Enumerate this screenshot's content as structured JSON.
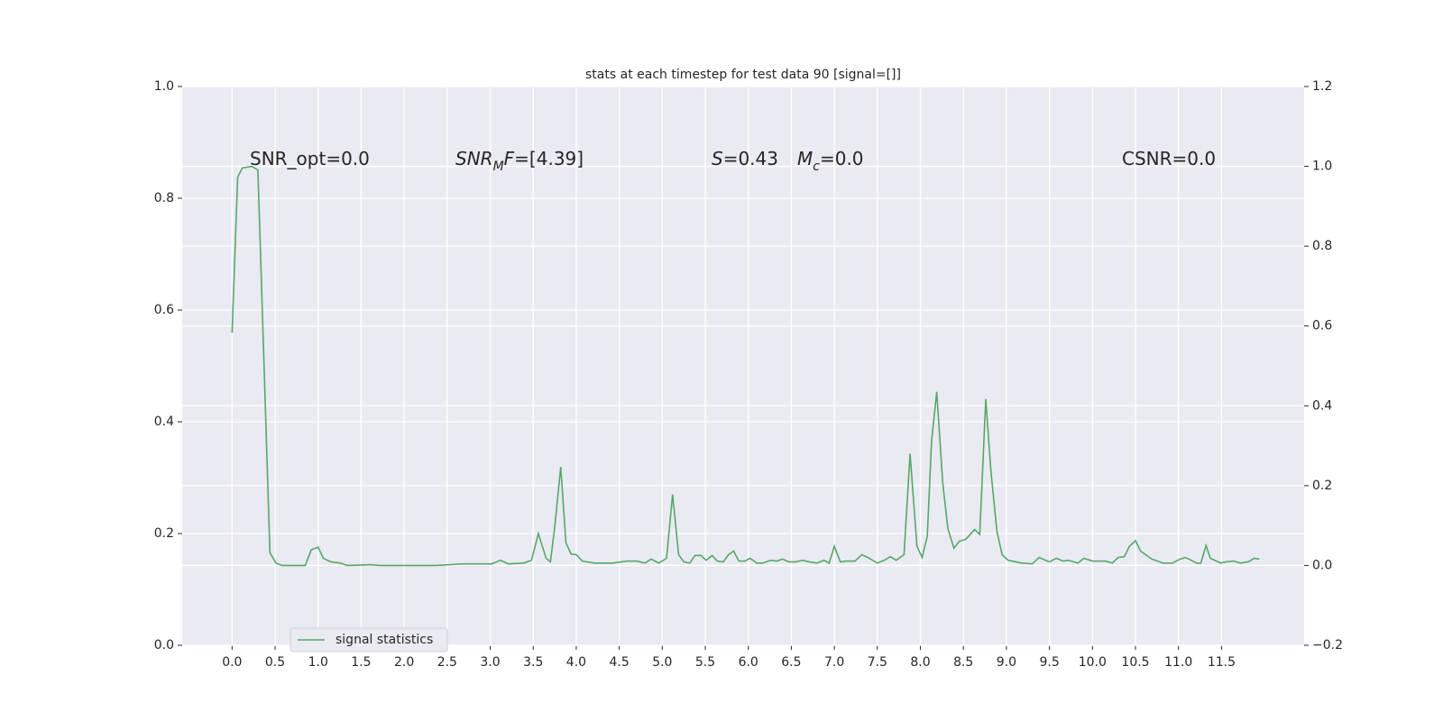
{
  "chart_data": {
    "type": "line",
    "title": "stats at each timestep for test data 90 [signal=[]]",
    "annotations": [
      {
        "parts": [
          {
            "text": "SNR_opt=0.0"
          }
        ]
      },
      {
        "parts": [
          {
            "text": "SNR",
            "italic": true
          },
          {
            "text": "M",
            "italic": true,
            "sub": true
          },
          {
            "text": "F",
            "italic": true
          },
          {
            "text": "=[4.39]"
          }
        ]
      },
      {
        "parts": [
          {
            "text": "S",
            "italic": true
          },
          {
            "text": "=0.43"
          }
        ]
      },
      {
        "parts": [
          {
            "text": "M",
            "italic": true
          },
          {
            "text": "c",
            "italic": true,
            "sub": true
          },
          {
            "text": "=0.0"
          }
        ]
      },
      {
        "parts": [
          {
            "text": "CSNR=0.0"
          }
        ]
      }
    ],
    "x": [
      0,
      0.065,
      0.12,
      0.23,
      0.3,
      0.44,
      0.51,
      0.58,
      0.85,
      0.92,
      1.0,
      1.06,
      1.15,
      1.26,
      1.34,
      1.61,
      1.72,
      2.37,
      2.69,
      3.02,
      3.12,
      3.21,
      3.39,
      3.48,
      3.56,
      3.65,
      3.7,
      3.75,
      3.82,
      3.88,
      3.94,
      4.0,
      4.07,
      4.21,
      4.42,
      4.59,
      4.7,
      4.8,
      4.87,
      4.96,
      5.05,
      5.12,
      5.19,
      5.25,
      5.32,
      5.38,
      5.45,
      5.51,
      5.58,
      5.64,
      5.71,
      5.77,
      5.83,
      5.89,
      5.96,
      6.02,
      6.1,
      6.17,
      6.26,
      6.33,
      6.4,
      6.47,
      6.55,
      6.63,
      6.71,
      6.8,
      6.88,
      6.94,
      7.0,
      7.07,
      7.14,
      7.24,
      7.32,
      7.39,
      7.5,
      7.58,
      7.65,
      7.72,
      7.81,
      7.88,
      7.96,
      8.02,
      8.08,
      8.13,
      8.19,
      8.26,
      8.32,
      8.39,
      8.45,
      8.53,
      8.63,
      8.69,
      8.76,
      8.82,
      8.89,
      8.95,
      9.02,
      9.18,
      9.3,
      9.38,
      9.5,
      9.58,
      9.66,
      9.72,
      9.83,
      9.9,
      10.0,
      10.15,
      10.23,
      10.3,
      10.37,
      10.43,
      10.5,
      10.56,
      10.69,
      10.82,
      10.93,
      11.02,
      11.08,
      11.15,
      11.21,
      11.26,
      11.32,
      11.37,
      11.49,
      11.55,
      11.64,
      11.72,
      11.81,
      11.88,
      11.94
    ],
    "series": [
      {
        "name": "signal statistics",
        "color": "#55a868",
        "axis": "y2",
        "values": [
          0.583,
          0.973,
          0.996,
          1.0,
          0.991,
          0.032,
          0.006,
          0.0,
          0.0,
          0.039,
          0.046,
          0.018,
          0.009,
          0.006,
          0.0,
          0.002,
          0.0,
          0.0,
          0.004,
          0.004,
          0.013,
          0.004,
          0.006,
          0.013,
          0.08,
          0.018,
          0.009,
          0.096,
          0.247,
          0.057,
          0.029,
          0.027,
          0.011,
          0.006,
          0.006,
          0.011,
          0.011,
          0.006,
          0.016,
          0.006,
          0.018,
          0.178,
          0.027,
          0.009,
          0.006,
          0.025,
          0.025,
          0.013,
          0.025,
          0.011,
          0.009,
          0.027,
          0.036,
          0.011,
          0.011,
          0.018,
          0.006,
          0.006,
          0.013,
          0.011,
          0.016,
          0.009,
          0.009,
          0.013,
          0.009,
          0.006,
          0.013,
          0.006,
          0.048,
          0.009,
          0.011,
          0.011,
          0.027,
          0.02,
          0.006,
          0.013,
          0.022,
          0.013,
          0.027,
          0.28,
          0.048,
          0.02,
          0.073,
          0.312,
          0.435,
          0.206,
          0.092,
          0.043,
          0.06,
          0.066,
          0.09,
          0.078,
          0.417,
          0.236,
          0.085,
          0.027,
          0.013,
          0.006,
          0.004,
          0.02,
          0.009,
          0.018,
          0.011,
          0.013,
          0.006,
          0.018,
          0.011,
          0.011,
          0.006,
          0.02,
          0.022,
          0.048,
          0.062,
          0.036,
          0.016,
          0.006,
          0.006,
          0.016,
          0.02,
          0.013,
          0.006,
          0.006,
          0.05,
          0.018,
          0.006,
          0.009,
          0.011,
          0.006,
          0.009,
          0.018,
          0.016
        ]
      }
    ],
    "xlim": [
      -0.58,
      12.46
    ],
    "xticks": [
      {
        "value": 0,
        "label": "0.0"
      },
      0.5,
      {
        "value": 1,
        "label": "1.0"
      },
      1.5,
      {
        "value": 2,
        "label": "2.0"
      },
      2.5,
      {
        "value": 3,
        "label": "3.0"
      },
      3.5,
      {
        "value": 4,
        "label": "4.0"
      },
      4.5,
      {
        "value": 5,
        "label": "5.0"
      },
      5.5,
      {
        "value": 6,
        "label": "6.0"
      },
      6.5,
      {
        "value": 7,
        "label": "7.0"
      },
      7.5,
      {
        "value": 8,
        "label": "8.0"
      },
      8.5,
      {
        "value": 9,
        "label": "9.0"
      },
      9.5,
      {
        "value": 10,
        "label": "10.0"
      },
      10.5,
      {
        "value": 11,
        "label": "11.0"
      },
      11.5
    ],
    "ylim": [
      0,
      1
    ],
    "yticks": [
      {
        "value": 0,
        "label": "0.0"
      },
      0.2,
      0.4,
      0.6,
      0.8,
      {
        "value": 1,
        "label": "1.0"
      }
    ],
    "y2lim": [
      -0.2,
      1.2
    ],
    "y2ticks": [
      {
        "value": -0.2,
        "label": "−0.2"
      },
      {
        "value": 0,
        "label": "0.0"
      },
      0.2,
      0.4,
      0.6,
      0.8,
      {
        "value": 1,
        "label": "1.0"
      },
      1.2
    ],
    "grid": true,
    "legend": "lower left"
  }
}
